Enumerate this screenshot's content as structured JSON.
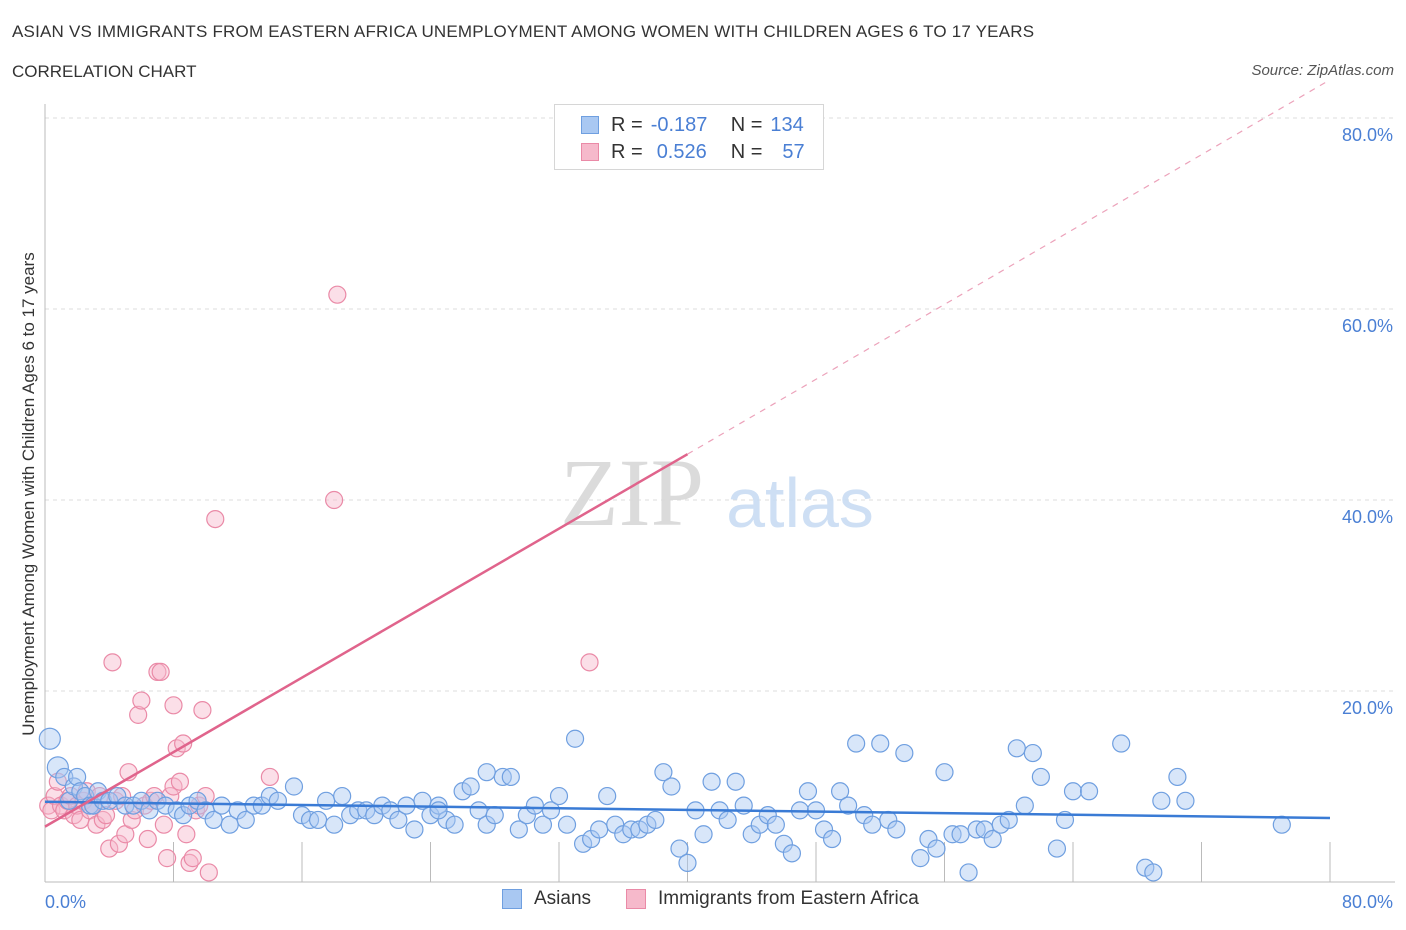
{
  "header": {
    "title": "ASIAN VS IMMIGRANTS FROM EASTERN AFRICA UNEMPLOYMENT AMONG WOMEN WITH CHILDREN AGES 6 TO 17 YEARS",
    "subtitle": "CORRELATION CHART",
    "source": "Source: ZipAtlas.com"
  },
  "watermark": {
    "zip": "ZIP",
    "atlas": "atlas"
  },
  "stats_legend": {
    "rows": [
      {
        "r_label": "R =",
        "r_value": "-0.187",
        "n_label": "N =",
        "n_value": "134"
      },
      {
        "r_label": "R =",
        "r_value": "0.526",
        "n_label": "N =",
        "n_value": "57"
      }
    ]
  },
  "colors": {
    "asian_fill": "#a9c8f2",
    "asian_stroke": "#6f9fe0",
    "asian_line": "#3a7bd5",
    "eaf_fill": "#f6b9cb",
    "eaf_stroke": "#ea8aa7",
    "eaf_line": "#e0648c",
    "axis_text": "#4a7fd4",
    "grid": "#dddddd"
  },
  "chart_data": {
    "type": "scatter",
    "title": "ASIAN VS IMMIGRANTS FROM EASTERN AFRICA UNEMPLOYMENT AMONG WOMEN WITH CHILDREN AGES 6 TO 17 YEARS",
    "xlabel": "",
    "ylabel": "Unemployment Among Women with Children Ages 6 to 17 years",
    "xlim": [
      0,
      80
    ],
    "ylim": [
      0,
      80
    ],
    "x_tick_labels": [
      "0.0%",
      "80.0%"
    ],
    "y_ticks": [
      20,
      40,
      60,
      80
    ],
    "y_tick_labels": [
      "20.0%",
      "40.0%",
      "60.0%",
      "80.0%"
    ],
    "legend": [
      "Asians",
      "Immigrants from Eastern Africa"
    ],
    "series": [
      {
        "name": "Asians",
        "r": -0.187,
        "n": 134,
        "trend": {
          "x0": 0,
          "y0": 8.4,
          "x1": 80,
          "y1": 6.7
        },
        "points": [
          [
            0.3,
            15.0
          ],
          [
            0.8,
            12.0
          ],
          [
            1.2,
            11.0
          ],
          [
            1.5,
            8.5
          ],
          [
            1.8,
            10.0
          ],
          [
            2.0,
            11.0
          ],
          [
            2.2,
            9.5
          ],
          [
            2.5,
            9.0
          ],
          [
            2.8,
            8.0
          ],
          [
            3.0,
            8.0
          ],
          [
            3.3,
            9.5
          ],
          [
            3.6,
            8.5
          ],
          [
            4.0,
            8.5
          ],
          [
            4.5,
            9.0
          ],
          [
            5.0,
            8.0
          ],
          [
            5.5,
            8.0
          ],
          [
            6.0,
            8.5
          ],
          [
            6.5,
            7.5
          ],
          [
            7.0,
            8.5
          ],
          [
            7.5,
            8.0
          ],
          [
            8.2,
            7.5
          ],
          [
            8.6,
            7.0
          ],
          [
            9.0,
            8.0
          ],
          [
            9.5,
            8.5
          ],
          [
            10.0,
            7.5
          ],
          [
            10.5,
            6.5
          ],
          [
            11.0,
            8.0
          ],
          [
            11.5,
            6.0
          ],
          [
            12.0,
            7.5
          ],
          [
            12.5,
            6.5
          ],
          [
            13.0,
            8.0
          ],
          [
            13.5,
            8.0
          ],
          [
            14.0,
            9.0
          ],
          [
            14.5,
            8.5
          ],
          [
            15.5,
            10.0
          ],
          [
            16.0,
            7.0
          ],
          [
            16.5,
            6.5
          ],
          [
            17.0,
            6.5
          ],
          [
            17.5,
            8.5
          ],
          [
            18.0,
            6.0
          ],
          [
            18.5,
            9.0
          ],
          [
            19.0,
            7.0
          ],
          [
            19.5,
            7.5
          ],
          [
            20.0,
            7.5
          ],
          [
            20.5,
            7.0
          ],
          [
            21.0,
            8.0
          ],
          [
            21.5,
            7.5
          ],
          [
            22.0,
            6.5
          ],
          [
            22.5,
            8.0
          ],
          [
            23.0,
            5.5
          ],
          [
            23.5,
            8.5
          ],
          [
            24.0,
            7.0
          ],
          [
            24.5,
            8.0
          ],
          [
            25.0,
            6.5
          ],
          [
            25.5,
            6.0
          ],
          [
            26.0,
            9.5
          ],
          [
            26.5,
            10.0
          ],
          [
            27.0,
            7.5
          ],
          [
            27.5,
            6.0
          ],
          [
            28.0,
            7.0
          ],
          [
            28.5,
            11.0
          ],
          [
            29.0,
            11.0
          ],
          [
            29.5,
            5.5
          ],
          [
            30.0,
            7.0
          ],
          [
            30.5,
            8.0
          ],
          [
            31.0,
            6.0
          ],
          [
            31.5,
            7.5
          ],
          [
            32.0,
            9.0
          ],
          [
            32.5,
            6.0
          ],
          [
            33.0,
            15.0
          ],
          [
            33.5,
            4.0
          ],
          [
            34.0,
            4.5
          ],
          [
            34.5,
            5.5
          ],
          [
            35.0,
            9.0
          ],
          [
            35.5,
            6.0
          ],
          [
            36.0,
            5.0
          ],
          [
            36.5,
            5.5
          ],
          [
            37.0,
            5.5
          ],
          [
            37.5,
            6.0
          ],
          [
            38.0,
            6.5
          ],
          [
            38.5,
            11.5
          ],
          [
            39.0,
            10.0
          ],
          [
            39.5,
            3.5
          ],
          [
            40.0,
            2.0
          ],
          [
            40.5,
            7.5
          ],
          [
            41.0,
            5.0
          ],
          [
            41.5,
            10.5
          ],
          [
            42.0,
            7.5
          ],
          [
            42.5,
            6.5
          ],
          [
            43.0,
            10.5
          ],
          [
            43.5,
            8.0
          ],
          [
            44.0,
            5.0
          ],
          [
            44.5,
            6.0
          ],
          [
            45.0,
            7.0
          ],
          [
            45.5,
            6.0
          ],
          [
            46.0,
            4.0
          ],
          [
            46.5,
            3.0
          ],
          [
            47.0,
            7.5
          ],
          [
            47.5,
            9.5
          ],
          [
            48.0,
            7.5
          ],
          [
            48.5,
            5.5
          ],
          [
            49.0,
            4.5
          ],
          [
            49.5,
            9.5
          ],
          [
            50.0,
            8.0
          ],
          [
            50.5,
            14.5
          ],
          [
            51.0,
            7.0
          ],
          [
            51.5,
            6.0
          ],
          [
            52.0,
            14.5
          ],
          [
            52.5,
            6.5
          ],
          [
            53.0,
            5.5
          ],
          [
            53.5,
            13.5
          ],
          [
            54.5,
            2.5
          ],
          [
            55.0,
            4.5
          ],
          [
            55.5,
            3.5
          ],
          [
            56.0,
            11.5
          ],
          [
            56.5,
            5.0
          ],
          [
            57.0,
            5.0
          ],
          [
            57.5,
            1.0
          ],
          [
            58.0,
            5.5
          ],
          [
            58.5,
            5.5
          ],
          [
            59.0,
            4.5
          ],
          [
            59.5,
            6.0
          ],
          [
            60.0,
            6.5
          ],
          [
            60.5,
            14.0
          ],
          [
            61.0,
            8.0
          ],
          [
            61.5,
            13.5
          ],
          [
            62.0,
            11.0
          ],
          [
            63.0,
            3.5
          ],
          [
            63.5,
            6.5
          ],
          [
            64.0,
            9.5
          ],
          [
            65.0,
            9.5
          ],
          [
            67.0,
            14.5
          ],
          [
            68.5,
            1.5
          ],
          [
            69.0,
            1.0
          ],
          [
            69.5,
            8.5
          ],
          [
            70.5,
            11.0
          ],
          [
            77.0,
            6.0
          ],
          [
            71.0,
            8.5
          ],
          [
            27.5,
            11.5
          ],
          [
            24.5,
            7.5
          ]
        ]
      },
      {
        "name": "Immigrants from Eastern Africa",
        "r": 0.526,
        "n": 57,
        "trend": {
          "x0": 0,
          "y0": 5.8,
          "x1": 40,
          "y1": 44.8,
          "dashed_to_x": 80,
          "dashed_to_y": 84.0
        },
        "points": [
          [
            0.2,
            8.0
          ],
          [
            0.4,
            7.5
          ],
          [
            0.6,
            9.0
          ],
          [
            0.8,
            10.5
          ],
          [
            1.0,
            8.0
          ],
          [
            1.2,
            7.5
          ],
          [
            1.4,
            8.5
          ],
          [
            1.6,
            9.0
          ],
          [
            1.8,
            7.0
          ],
          [
            2.0,
            8.0
          ],
          [
            2.2,
            6.5
          ],
          [
            2.4,
            8.5
          ],
          [
            2.6,
            9.5
          ],
          [
            2.8,
            7.5
          ],
          [
            3.0,
            8.0
          ],
          [
            3.2,
            6.0
          ],
          [
            3.4,
            9.0
          ],
          [
            3.6,
            6.5
          ],
          [
            3.8,
            7.0
          ],
          [
            4.0,
            3.5
          ],
          [
            4.2,
            23.0
          ],
          [
            4.4,
            8.5
          ],
          [
            4.6,
            4.0
          ],
          [
            4.8,
            9.0
          ],
          [
            5.0,
            5.0
          ],
          [
            5.2,
            11.5
          ],
          [
            5.4,
            6.5
          ],
          [
            5.6,
            7.5
          ],
          [
            5.8,
            17.5
          ],
          [
            6.0,
            19.0
          ],
          [
            6.2,
            8.0
          ],
          [
            6.4,
            4.5
          ],
          [
            6.6,
            8.5
          ],
          [
            6.8,
            9.0
          ],
          [
            7.0,
            22.0
          ],
          [
            7.2,
            22.0
          ],
          [
            7.4,
            6.0
          ],
          [
            7.6,
            2.5
          ],
          [
            7.8,
            9.0
          ],
          [
            8.0,
            10.0
          ],
          [
            8.2,
            14.0
          ],
          [
            8.4,
            10.5
          ],
          [
            8.6,
            14.5
          ],
          [
            8.8,
            5.0
          ],
          [
            9.0,
            2.0
          ],
          [
            9.2,
            2.5
          ],
          [
            9.4,
            7.5
          ],
          [
            9.6,
            8.0
          ],
          [
            9.8,
            18.0
          ],
          [
            10.0,
            9.0
          ],
          [
            10.2,
            1.0
          ],
          [
            10.6,
            38.0
          ],
          [
            14.0,
            11.0
          ],
          [
            18.0,
            40.0
          ],
          [
            18.2,
            61.5
          ],
          [
            33.9,
            23.0
          ],
          [
            8.0,
            18.5
          ]
        ]
      }
    ]
  }
}
